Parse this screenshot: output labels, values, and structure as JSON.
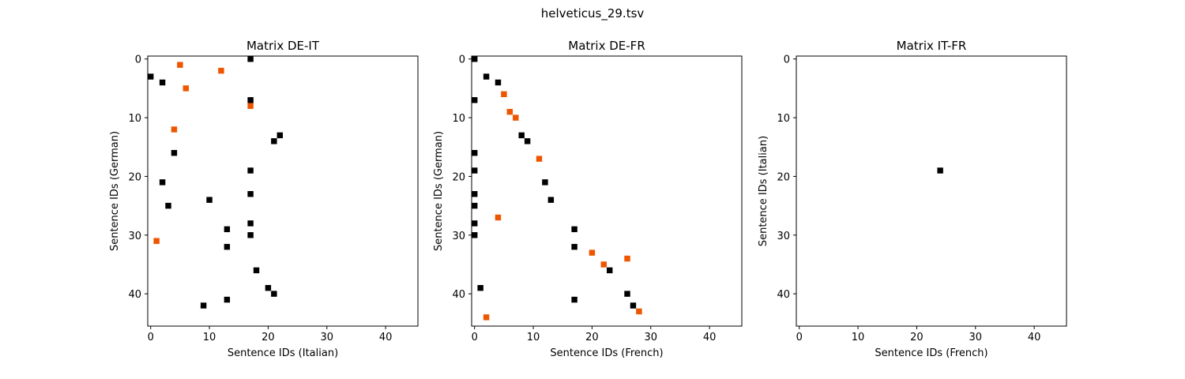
{
  "figure": {
    "suptitle": "helveticus_29.tsv"
  },
  "chart_data": [
    {
      "type": "heatmap",
      "title": "Matrix DE-IT",
      "xlabel": "Sentence IDs (Italian)",
      "ylabel": "Sentence IDs (German)",
      "xlim": [
        -0.5,
        45.5
      ],
      "ylim": [
        45.5,
        -0.5
      ],
      "y_inverted": true,
      "xticks": [
        0,
        10,
        20,
        30,
        40
      ],
      "yticks": [
        0,
        10,
        20,
        30,
        40
      ],
      "colors": {
        "black": "#000000",
        "orange": "#ee5500"
      },
      "cells": [
        {
          "x": 17,
          "y": 0,
          "color": "black"
        },
        {
          "x": 5,
          "y": 1,
          "color": "orange"
        },
        {
          "x": 12,
          "y": 2,
          "color": "orange"
        },
        {
          "x": 0,
          "y": 3,
          "color": "black"
        },
        {
          "x": 2,
          "y": 4,
          "color": "black"
        },
        {
          "x": 6,
          "y": 5,
          "color": "orange"
        },
        {
          "x": 17,
          "y": 7,
          "color": "black"
        },
        {
          "x": 17,
          "y": 8,
          "color": "orange"
        },
        {
          "x": 4,
          "y": 12,
          "color": "orange"
        },
        {
          "x": 22,
          "y": 13,
          "color": "black"
        },
        {
          "x": 21,
          "y": 14,
          "color": "black"
        },
        {
          "x": 4,
          "y": 16,
          "color": "black"
        },
        {
          "x": 17,
          "y": 19,
          "color": "black"
        },
        {
          "x": 2,
          "y": 21,
          "color": "black"
        },
        {
          "x": 17,
          "y": 23,
          "color": "black"
        },
        {
          "x": 10,
          "y": 24,
          "color": "black"
        },
        {
          "x": 3,
          "y": 25,
          "color": "black"
        },
        {
          "x": 17,
          "y": 28,
          "color": "black"
        },
        {
          "x": 13,
          "y": 29,
          "color": "black"
        },
        {
          "x": 17,
          "y": 30,
          "color": "black"
        },
        {
          "x": 1,
          "y": 31,
          "color": "orange"
        },
        {
          "x": 13,
          "y": 32,
          "color": "black"
        },
        {
          "x": 18,
          "y": 36,
          "color": "black"
        },
        {
          "x": 20,
          "y": 39,
          "color": "black"
        },
        {
          "x": 21,
          "y": 40,
          "color": "black"
        },
        {
          "x": 13,
          "y": 41,
          "color": "black"
        },
        {
          "x": 9,
          "y": 42,
          "color": "black"
        }
      ]
    },
    {
      "type": "heatmap",
      "title": "Matrix DE-FR",
      "xlabel": "Sentence IDs (French)",
      "ylabel": "Sentence IDs (German)",
      "xlim": [
        -0.5,
        45.5
      ],
      "ylim": [
        45.5,
        -0.5
      ],
      "y_inverted": true,
      "xticks": [
        0,
        10,
        20,
        30,
        40
      ],
      "yticks": [
        0,
        10,
        20,
        30,
        40
      ],
      "colors": {
        "black": "#000000",
        "orange": "#ee5500"
      },
      "cells": [
        {
          "x": 0,
          "y": 0,
          "color": "black"
        },
        {
          "x": 2,
          "y": 3,
          "color": "black"
        },
        {
          "x": 4,
          "y": 4,
          "color": "black"
        },
        {
          "x": 5,
          "y": 6,
          "color": "orange"
        },
        {
          "x": 0,
          "y": 7,
          "color": "black"
        },
        {
          "x": 6,
          "y": 9,
          "color": "orange"
        },
        {
          "x": 7,
          "y": 10,
          "color": "orange"
        },
        {
          "x": 8,
          "y": 13,
          "color": "black"
        },
        {
          "x": 9,
          "y": 14,
          "color": "black"
        },
        {
          "x": 0,
          "y": 16,
          "color": "black"
        },
        {
          "x": 11,
          "y": 17,
          "color": "orange"
        },
        {
          "x": 0,
          "y": 19,
          "color": "black"
        },
        {
          "x": 12,
          "y": 21,
          "color": "black"
        },
        {
          "x": 0,
          "y": 23,
          "color": "black"
        },
        {
          "x": 13,
          "y": 24,
          "color": "black"
        },
        {
          "x": 0,
          "y": 25,
          "color": "black"
        },
        {
          "x": 4,
          "y": 27,
          "color": "orange"
        },
        {
          "x": 0,
          "y": 28,
          "color": "black"
        },
        {
          "x": 17,
          "y": 29,
          "color": "black"
        },
        {
          "x": 0,
          "y": 30,
          "color": "black"
        },
        {
          "x": 17,
          "y": 32,
          "color": "black"
        },
        {
          "x": 20,
          "y": 33,
          "color": "orange"
        },
        {
          "x": 26,
          "y": 34,
          "color": "orange"
        },
        {
          "x": 22,
          "y": 35,
          "color": "orange"
        },
        {
          "x": 23,
          "y": 36,
          "color": "black"
        },
        {
          "x": 1,
          "y": 39,
          "color": "black"
        },
        {
          "x": 26,
          "y": 40,
          "color": "black"
        },
        {
          "x": 17,
          "y": 41,
          "color": "black"
        },
        {
          "x": 27,
          "y": 42,
          "color": "black"
        },
        {
          "x": 28,
          "y": 43,
          "color": "orange"
        },
        {
          "x": 2,
          "y": 44,
          "color": "orange"
        }
      ]
    },
    {
      "type": "heatmap",
      "title": "Matrix IT-FR",
      "xlabel": "Sentence IDs (French)",
      "ylabel": "Sentence IDs (Italian)",
      "xlim": [
        -0.5,
        45.5
      ],
      "ylim": [
        45.5,
        -0.5
      ],
      "y_inverted": true,
      "xticks": [
        0,
        10,
        20,
        30,
        40
      ],
      "yticks": [
        0,
        10,
        20,
        30,
        40
      ],
      "colors": {
        "black": "#000000",
        "orange": "#ee5500"
      },
      "cells": [
        {
          "x": 24,
          "y": 19,
          "color": "black"
        }
      ]
    }
  ]
}
